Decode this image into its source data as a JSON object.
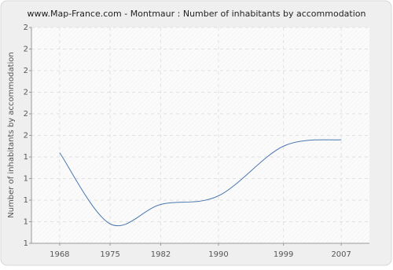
{
  "chart_data": {
    "type": "line",
    "title": "www.Map-France.com - Montmaur : Number of inhabitants by accommodation",
    "y_label": "Number of inhabitants by accommodation",
    "x": [
      1968,
      1975,
      1982,
      1990,
      1999,
      2007
    ],
    "series": [
      {
        "name": "Montmaur",
        "color": "#4a78b0",
        "values": [
          1.42,
          1.09,
          1.18,
          1.22,
          1.45,
          1.48
        ]
      }
    ],
    "xlim": [
      1964.1,
      2010.9
    ],
    "xticks": [
      1968,
      1975,
      1982,
      1990,
      1999,
      2007
    ],
    "ylim": [
      1,
      2
    ],
    "yticks": [
      {
        "value": 1.0,
        "label": "1"
      },
      {
        "value": 1.1,
        "label": "1"
      },
      {
        "value": 1.2,
        "label": "1"
      },
      {
        "value": 1.3,
        "label": "1"
      },
      {
        "value": 1.4,
        "label": "1"
      },
      {
        "value": 1.5,
        "label": "2"
      },
      {
        "value": 1.6,
        "label": "2"
      },
      {
        "value": 1.7,
        "label": "2"
      },
      {
        "value": 1.8,
        "label": "2"
      },
      {
        "value": 1.9,
        "label": "2"
      },
      {
        "value": 2.0,
        "label": "2"
      }
    ],
    "grid": true
  }
}
